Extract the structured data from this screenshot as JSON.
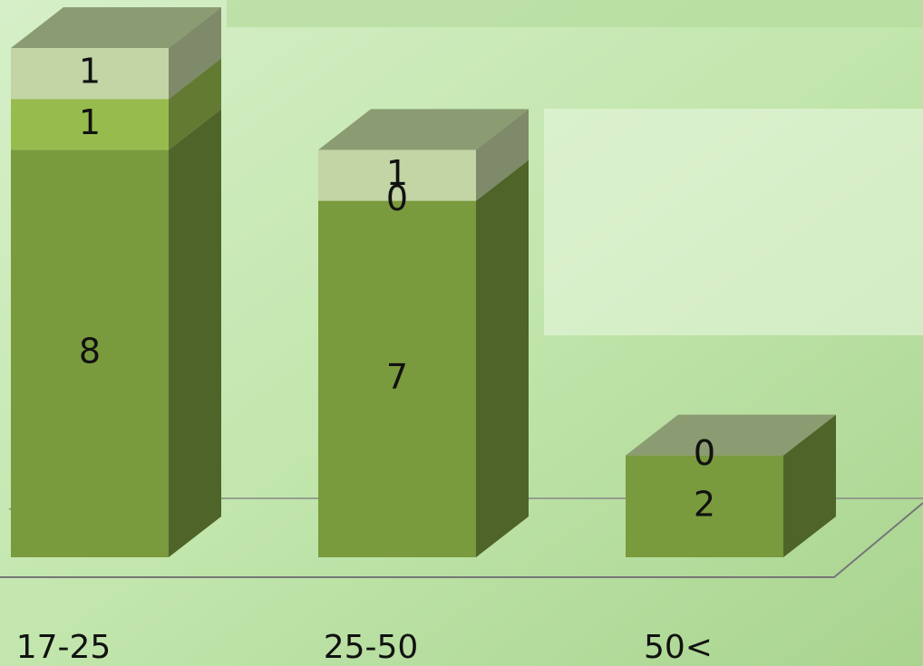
{
  "chart_data": {
    "type": "bar3d-stacked",
    "categories": [
      "17-25",
      "25-50",
      "50<"
    ],
    "series": [
      {
        "color": "#7a9a3e",
        "values": [
          8,
          7,
          2
        ]
      },
      {
        "color": "#98bb4e",
        "values": [
          1,
          0,
          0
        ]
      },
      {
        "color": "#c3d4a5",
        "values": [
          1,
          1,
          0
        ]
      }
    ],
    "ylim": [
      0,
      10
    ]
  }
}
